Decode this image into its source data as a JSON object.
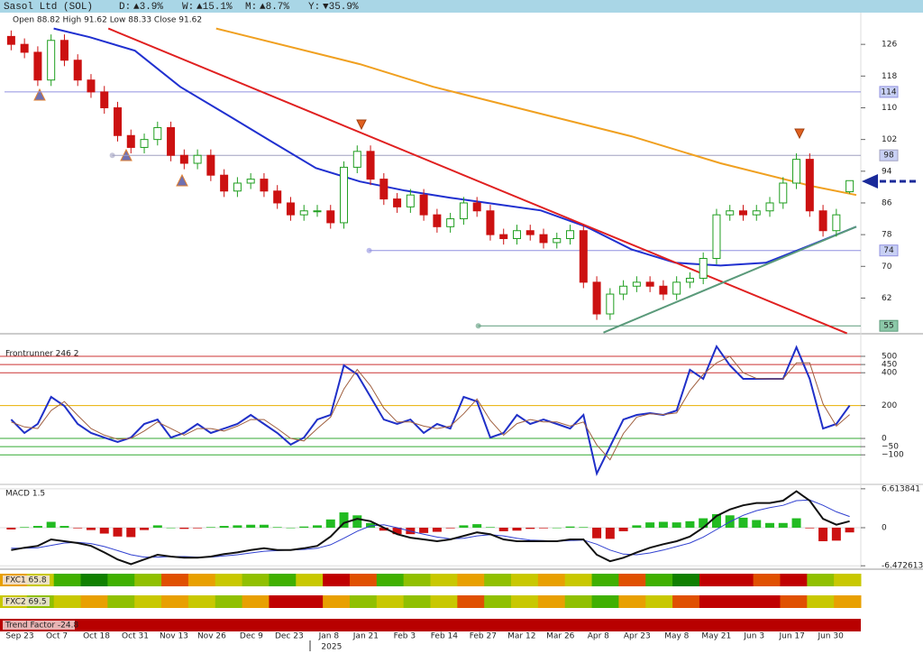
{
  "header": {
    "title": "Sasol Ltd (SOL)",
    "stats": [
      {
        "label": "D:",
        "text": "▲3.9%",
        "color": "#119911"
      },
      {
        "label": "W:",
        "text": "▲15.1%",
        "color": "#119911"
      },
      {
        "label": "M:",
        "text": "▲8.7%",
        "color": "#119911"
      },
      {
        "label": "Y:",
        "text": "▼35.9%",
        "color": "#cc1111"
      }
    ]
  },
  "time_axis": {
    "xlim": [
      0,
      64
    ],
    "xticks": [
      {
        "value": 1.15,
        "label": "Sep 23"
      },
      {
        "value": 3.93,
        "label": "Oct 7"
      },
      {
        "value": 6.91,
        "label": "Oct 18"
      },
      {
        "value": 9.82,
        "label": "Oct 31"
      },
      {
        "value": 12.73,
        "label": "Nov 13"
      },
      {
        "value": 15.57,
        "label": "Nov 26"
      },
      {
        "value": 18.55,
        "label": "Dec 9"
      },
      {
        "value": 21.39,
        "label": "Dec 23"
      },
      {
        "value": 24.37,
        "label": "Jan 8"
      },
      {
        "value": 27.15,
        "label": "Jan 21"
      },
      {
        "value": 30.06,
        "label": "Feb 3"
      },
      {
        "value": 33.04,
        "label": "Feb 14"
      },
      {
        "value": 35.95,
        "label": "Feb 27"
      },
      {
        "value": 38.86,
        "label": "Mar 12"
      },
      {
        "value": 41.77,
        "label": "Mar 26"
      },
      {
        "value": 44.62,
        "label": "Apr 8"
      },
      {
        "value": 47.53,
        "label": "Apr 23"
      },
      {
        "value": 50.51,
        "label": "May 8"
      },
      {
        "value": 53.49,
        "label": "May 21"
      },
      {
        "value": 56.33,
        "label": "Jun 3"
      },
      {
        "value": 59.17,
        "label": "Jun 17"
      },
      {
        "value": 62.08,
        "label": "Jun 30"
      }
    ],
    "year_marker": {
      "value": 22.95,
      "label": "2025"
    }
  },
  "chart_data": [
    {
      "type": "candlestick",
      "info": "Open 88.82  High 91.62  Low 88.33  Close 91.62",
      "up_color": "#1f9e1f",
      "down_color": "#cc1111",
      "open": [
        128,
        126,
        124,
        117,
        127,
        122,
        117,
        114,
        110,
        103,
        100,
        102,
        105,
        98,
        96,
        98,
        93,
        89,
        91,
        92,
        89,
        86,
        83,
        84,
        84,
        81,
        95,
        99,
        92,
        87,
        85,
        88,
        83,
        80,
        82,
        86,
        84,
        78,
        77,
        79,
        78,
        76,
        77,
        79,
        66,
        58,
        63,
        65,
        66,
        65,
        63,
        66,
        67,
        72,
        83,
        84,
        83,
        84,
        86,
        91,
        97,
        84,
        79,
        88.82
      ],
      "high": [
        129.5,
        127.5,
        125.5,
        128.5,
        128.5,
        123.5,
        118.5,
        115.5,
        111.5,
        104.5,
        103.5,
        106.5,
        106.5,
        99.5,
        99.5,
        99.5,
        94.5,
        92.5,
        93.5,
        93.5,
        90.5,
        87.5,
        85.5,
        85.5,
        85.5,
        96.5,
        100.5,
        100.5,
        93.5,
        88.5,
        89.5,
        89.5,
        84.5,
        83.5,
        87.5,
        87.5,
        85.5,
        79.5,
        80.5,
        80.5,
        79.5,
        78.5,
        80.5,
        80.5,
        67.5,
        64.5,
        66.5,
        67.5,
        67.5,
        66.5,
        67.5,
        68.5,
        73.5,
        84.5,
        85.5,
        85.5,
        85.5,
        87.5,
        92.5,
        98.5,
        98.5,
        85.5,
        84.5,
        91.62
      ],
      "low": [
        124.5,
        122.5,
        115.5,
        115.5,
        120.5,
        115.5,
        112.5,
        108.5,
        101.5,
        98.5,
        98.5,
        100.5,
        96.5,
        94.5,
        94.5,
        91.5,
        87.5,
        87.5,
        89.5,
        87.5,
        84.5,
        81.5,
        81.5,
        82.5,
        79.5,
        79.5,
        93.5,
        90.5,
        85.5,
        83.5,
        83.5,
        81.5,
        78.5,
        78.5,
        80.5,
        82.5,
        76.5,
        75.5,
        75.5,
        76.5,
        74.5,
        74.5,
        75.5,
        64.5,
        56.5,
        56.5,
        61.5,
        63.5,
        63.5,
        61.5,
        61.5,
        64.5,
        65.5,
        70.5,
        81.5,
        81.5,
        81.5,
        82.5,
        84.5,
        89.5,
        82.5,
        77.5,
        77.5,
        88.33
      ],
      "close": [
        126,
        124,
        117,
        127,
        122,
        117,
        114,
        110,
        103,
        100,
        102,
        105,
        98,
        96,
        98,
        93,
        89,
        91,
        92,
        89,
        86,
        83,
        84,
        84,
        81,
        95,
        99,
        92,
        87,
        85,
        88,
        83,
        80,
        82,
        86,
        84,
        78,
        77,
        79,
        78,
        76,
        77,
        79,
        66,
        58,
        63,
        65,
        66,
        65,
        63,
        66,
        67,
        72,
        83,
        84,
        83,
        84,
        86,
        91,
        97,
        84,
        79,
        83,
        91.62
      ],
      "ylim": [
        53,
        134
      ],
      "yticks": [
        62,
        70,
        78,
        86,
        94,
        102,
        110,
        118,
        126
      ],
      "levels": [
        {
          "value": 114,
          "color": "#9090e0",
          "box": "#c8d0f4",
          "from": 0
        },
        {
          "value": 98,
          "color": "#a0a0c0",
          "box": "#c8d0f4",
          "from": 8.1
        },
        {
          "value": 74,
          "color": "#9090e0",
          "box": "#c8d0f4",
          "from": 27.4
        },
        {
          "value": 55,
          "color": "#5a9a7a",
          "box": "#8cc8a8",
          "from": 35.6
        }
      ],
      "moving_averages": [
        {
          "color": "#f0a020",
          "x": [
            15.9,
            26.7,
            32.2,
            40.3,
            47.1,
            53.8,
            60.6,
            64
          ],
          "values": [
            130,
            121,
            115.3,
            108.5,
            102.8,
            96,
            90.3,
            88
          ]
        },
        {
          "color": "#2030d0",
          "x": [
            3.7,
            6.4,
            9.8,
            13.2,
            16.6,
            20,
            23.4,
            26.7,
            30.1,
            33.5,
            36.9,
            40.3,
            43.7,
            47.1,
            50.4,
            53.8,
            57.2,
            60.6,
            64
          ],
          "values": [
            130,
            127.8,
            124.4,
            115.3,
            108.5,
            101.6,
            94.8,
            91.4,
            89.1,
            87.3,
            85.7,
            84.1,
            80,
            74.3,
            70.9,
            70.2,
            70.9,
            75.4,
            80
          ]
        }
      ],
      "trendlines": [
        {
          "color": "#e02020",
          "x": [
            7.8,
            63.3
          ],
          "values": [
            130,
            53.1
          ]
        },
        {
          "color": "#5a9a7a",
          "x": [
            45,
            64
          ],
          "values": [
            53.3,
            80
          ]
        }
      ]
    },
    {
      "type": "line",
      "title": "Frontrunner 246 2",
      "series": [
        {
          "color": "#2030c8",
          "values": [
            115,
            33,
            88,
            253,
            198,
            88,
            33,
            5,
            -22,
            5,
            88,
            115,
            5,
            33,
            88,
            33,
            60,
            88,
            143,
            88,
            33,
            -38,
            5,
            115,
            143,
            445,
            390,
            253,
            115,
            88,
            115,
            33,
            88,
            60,
            253,
            225,
            5,
            33,
            143,
            88,
            115,
            88,
            60,
            143,
            -214,
            -49,
            115,
            143,
            154,
            143,
            170,
            418,
            363,
            560,
            445,
            363,
            363,
            363,
            363,
            555,
            363,
            60,
            88,
            200
          ]
        },
        {
          "color": "#a06040",
          "values": [
            100,
            70,
            60,
            170,
            225,
            140,
            60,
            20,
            -5,
            0,
            45,
            100,
            60,
            20,
            60,
            60,
            45,
            75,
            115,
            115,
            60,
            0,
            -15,
            60,
            130,
            300,
            420,
            320,
            185,
            100,
            100,
            75,
            60,
            75,
            150,
            240,
            110,
            20,
            90,
            115,
            100,
            100,
            75,
            100,
            -40,
            -130,
            30,
            130,
            150,
            145,
            155,
            290,
            390,
            460,
            500,
            400,
            365,
            363,
            363,
            460,
            460,
            210,
            75,
            145
          ]
        }
      ],
      "ylim": [
        -269,
        566
      ],
      "yticks": [
        500,
        450,
        400,
        200,
        0,
        {
          "value": -50,
          "label": "−50"
        },
        {
          "value": -100,
          "label": "−100"
        }
      ],
      "tick_colors": [
        "#cc3333",
        "#cc3333",
        "#cc3333",
        "#e8b000",
        "#33aa33",
        "#33aa33",
        "#33aa33"
      ]
    },
    {
      "type": "macd",
      "title": "MACD 1.5",
      "macd": {
        "color": "#111111",
        "values": [
          -3.8,
          -3.4,
          -3.1,
          -2.0,
          -2.3,
          -2.6,
          -3.1,
          -4.2,
          -5.4,
          -6.2,
          -5.4,
          -4.6,
          -4.9,
          -5.1,
          -5.1,
          -4.9,
          -4.5,
          -4.2,
          -3.8,
          -3.5,
          -3.8,
          -3.8,
          -3.5,
          -3.1,
          -1.5,
          0.8,
          1.5,
          1.1,
          0,
          -1.1,
          -1.7,
          -2.0,
          -2.3,
          -2.0,
          -1.4,
          -0.8,
          -1.1,
          -2.0,
          -2.3,
          -2.3,
          -2.3,
          -2.3,
          -2.0,
          -2.0,
          -4.6,
          -5.7,
          -5.1,
          -4.2,
          -3.4,
          -2.8,
          -2.3,
          -1.5,
          0,
          2.0,
          3.1,
          3.8,
          4.2,
          4.2,
          4.6,
          6.2,
          4.6,
          1.5,
          0.5,
          1.1
        ]
      },
      "signal": {
        "color": "#3040d0",
        "values": [
          -3.5,
          -3.5,
          -3.4,
          -3.0,
          -2.6,
          -2.5,
          -2.7,
          -3.2,
          -3.9,
          -4.6,
          -5.0,
          -5.0,
          -4.9,
          -4.9,
          -5.0,
          -5.0,
          -4.8,
          -4.6,
          -4.3,
          -4.0,
          -3.9,
          -3.8,
          -3.7,
          -3.5,
          -2.9,
          -1.8,
          -0.6,
          0.3,
          0.5,
          0,
          -0.6,
          -1.1,
          -1.6,
          -1.9,
          -1.8,
          -1.4,
          -1.2,
          -1.4,
          -1.8,
          -2.1,
          -2.2,
          -2.3,
          -2.2,
          -2.1,
          -2.8,
          -3.8,
          -4.5,
          -4.6,
          -4.3,
          -3.8,
          -3.2,
          -2.6,
          -1.6,
          -0.3,
          1.0,
          2.1,
          2.9,
          3.4,
          3.8,
          4.6,
          4.7,
          3.8,
          2.7,
          1.9
        ]
      },
      "histogram": {
        "up_color": "#22bb22",
        "down_color": "#cc1111",
        "values": [
          -0.3,
          0.1,
          0.3,
          1.0,
          0.3,
          -0.1,
          -0.4,
          -1.0,
          -1.5,
          -1.6,
          -0.4,
          0.4,
          0,
          -0.2,
          -0.1,
          0.1,
          0.3,
          0.4,
          0.5,
          0.5,
          0.1,
          0,
          0.2,
          0.4,
          1.4,
          2.6,
          2.1,
          0.8,
          -0.5,
          -1.1,
          -1.1,
          -0.9,
          -0.7,
          -0.1,
          0.4,
          0.6,
          0.1,
          -0.6,
          -0.5,
          -0.2,
          -0.1,
          0,
          0.2,
          0.1,
          -1.8,
          -1.9,
          -0.6,
          0.4,
          0.9,
          1.0,
          0.9,
          1.1,
          1.6,
          2.3,
          2.1,
          1.7,
          1.3,
          0.8,
          0.8,
          1.6,
          -0.1,
          -2.3,
          -2.2,
          -0.8
        ]
      },
      "ylim": [
        -6.9,
        6.9
      ],
      "yticks": [
        6.613841,
        0,
        -6.472613
      ]
    },
    {
      "type": "heatmap",
      "title": "FXC1 65.8",
      "colors": [
        "#e8a000",
        "#c8c800",
        "#40b000",
        "#108000",
        "#40b000",
        "#90c000",
        "#e05000",
        "#e8a000",
        "#c8c800",
        "#90c000",
        "#40b000",
        "#c8c800",
        "#c00000",
        "#e05000",
        "#40b000",
        "#90c000",
        "#c8c800",
        "#e8a000",
        "#90c000",
        "#c8c800",
        "#e8a000",
        "#c8c800",
        "#40b000",
        "#e05000",
        "#40b000",
        "#108000",
        "#c00000",
        "#c00000",
        "#e05000",
        "#c00000",
        "#90c000",
        "#c8c800"
      ]
    },
    {
      "type": "heatmap",
      "title": "FXC2 69.5",
      "colors": [
        "#c8c800",
        "#90c000",
        "#c8c800",
        "#e8a000",
        "#90c000",
        "#c8c800",
        "#e8a000",
        "#c8c800",
        "#90c000",
        "#e8a000",
        "#c00000",
        "#c00000",
        "#e8a000",
        "#90c000",
        "#c8c800",
        "#90c000",
        "#c8c800",
        "#e05000",
        "#90c000",
        "#c8c800",
        "#e8a000",
        "#90c000",
        "#40b000",
        "#e8a000",
        "#c8c800",
        "#e05000",
        "#c00000",
        "#c00000",
        "#c00000",
        "#e05000",
        "#c8c800",
        "#e8a000"
      ]
    },
    {
      "type": "band",
      "title": "Trend Factor -24.8",
      "color": "#b80000"
    }
  ]
}
